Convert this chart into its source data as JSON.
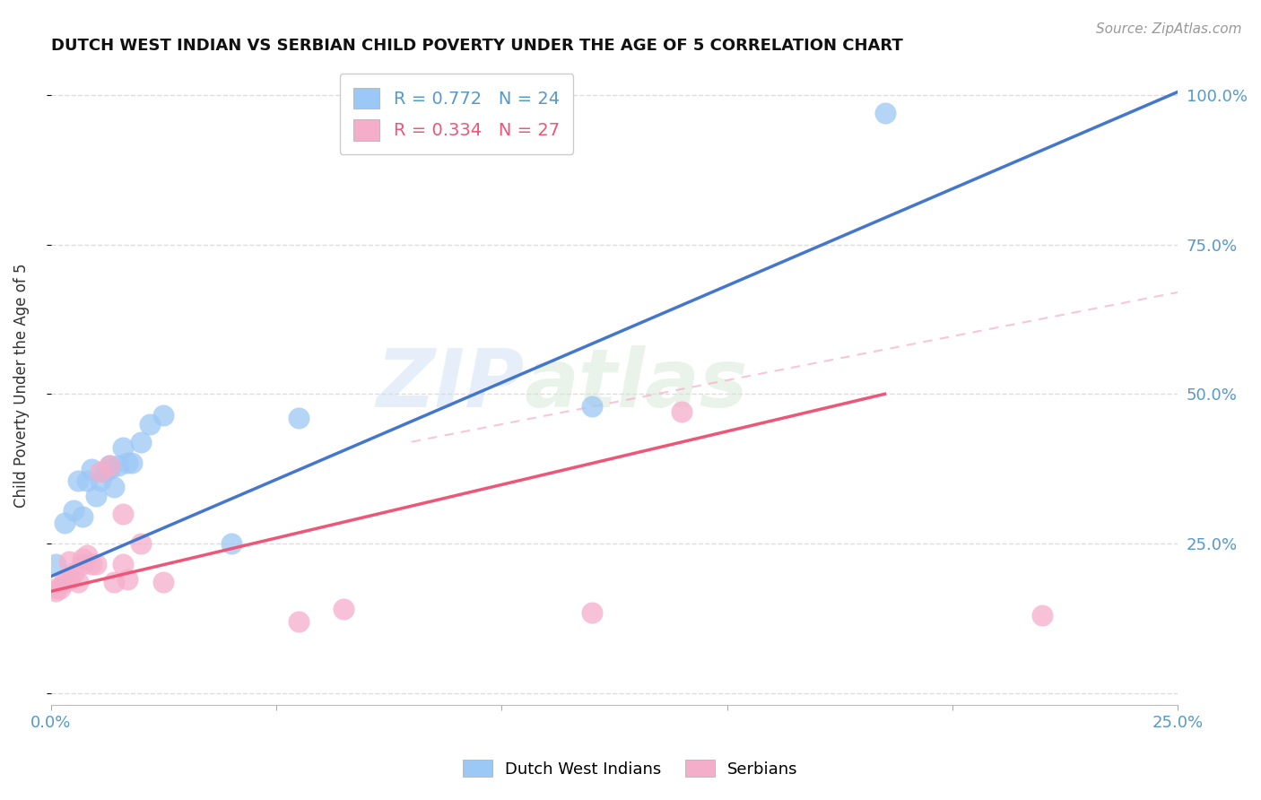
{
  "title": "DUTCH WEST INDIAN VS SERBIAN CHILD POVERTY UNDER THE AGE OF 5 CORRELATION CHART",
  "source": "Source: ZipAtlas.com",
  "ylabel": "Child Poverty Under the Age of 5",
  "xlim": [
    0.0,
    0.25
  ],
  "ylim": [
    -0.02,
    1.05
  ],
  "ytick_vals": [
    0.0,
    0.25,
    0.5,
    0.75,
    1.0
  ],
  "ytick_labels": [
    "",
    "25.0%",
    "50.0%",
    "75.0%",
    "100.0%"
  ],
  "blue_color": "#9CC8F5",
  "pink_color": "#F5AECA",
  "blue_line_color": "#4477CC",
  "pink_line_color": "#EE5577",
  "dashed_line_color": "#F5AECA",
  "background_color": "#ffffff",
  "grid_color": "#dddddd",
  "watermark_left": "ZIP",
  "watermark_right": "atlas",
  "dutch_x": [
    0.001,
    0.003,
    0.005,
    0.006,
    0.007,
    0.008,
    0.009,
    0.01,
    0.011,
    0.012,
    0.013,
    0.013,
    0.014,
    0.015,
    0.016,
    0.017,
    0.018,
    0.02,
    0.022,
    0.025,
    0.04,
    0.055,
    0.12,
    0.185
  ],
  "dutch_y": [
    0.215,
    0.285,
    0.305,
    0.355,
    0.295,
    0.355,
    0.375,
    0.33,
    0.355,
    0.37,
    0.375,
    0.38,
    0.345,
    0.38,
    0.41,
    0.385,
    0.385,
    0.42,
    0.45,
    0.465,
    0.25,
    0.46,
    0.48,
    0.97
  ],
  "serbian_x": [
    0.001,
    0.001,
    0.002,
    0.003,
    0.003,
    0.004,
    0.004,
    0.005,
    0.006,
    0.007,
    0.007,
    0.008,
    0.009,
    0.01,
    0.011,
    0.013,
    0.014,
    0.016,
    0.016,
    0.017,
    0.02,
    0.025,
    0.055,
    0.065,
    0.12,
    0.14,
    0.22
  ],
  "serbian_y": [
    0.17,
    0.175,
    0.175,
    0.185,
    0.19,
    0.19,
    0.22,
    0.2,
    0.185,
    0.215,
    0.225,
    0.23,
    0.215,
    0.215,
    0.37,
    0.38,
    0.185,
    0.215,
    0.3,
    0.19,
    0.25,
    0.185,
    0.12,
    0.14,
    0.135,
    0.47,
    0.13
  ],
  "blue_line_x": [
    0.0,
    0.25
  ],
  "blue_line_y": [
    0.195,
    1.005
  ],
  "pink_line_x": [
    0.0,
    0.185
  ],
  "pink_line_y": [
    0.17,
    0.5
  ],
  "dashed_line_x": [
    0.08,
    0.25
  ],
  "dashed_line_y": [
    0.42,
    0.67
  ],
  "legend_blue_R": "R = 0.772",
  "legend_blue_N": "N = 24",
  "legend_pink_R": "R = 0.334",
  "legend_pink_N": "N = 27"
}
